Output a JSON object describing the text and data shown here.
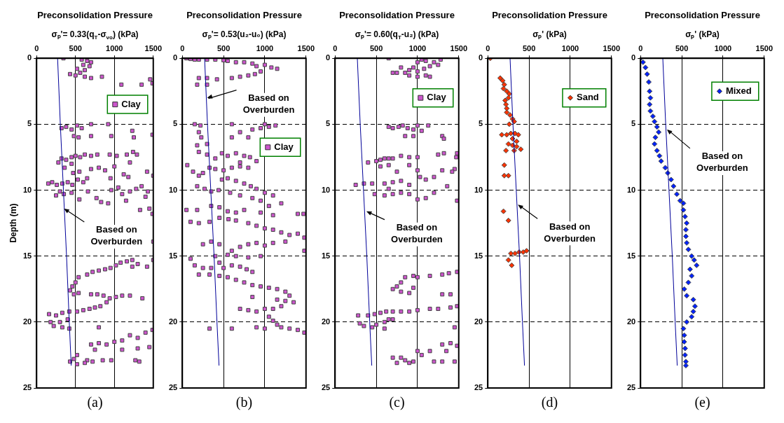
{
  "chart_data": [
    {
      "type": "scatter",
      "title": "Preconsolidation Pressure",
      "xlabel": "σₚ'= 0.33(q$_{T}$-σ$_{vo}$) (kPa)",
      "ylabel": "Depth (m)",
      "xlim": [
        0,
        1500
      ],
      "xticks": [
        0,
        500,
        1000,
        1500
      ],
      "ylim": [
        25,
        0
      ],
      "yticks": [
        0,
        5,
        10,
        15,
        20,
        25
      ],
      "grid": true,
      "legend": "top right",
      "series": [
        {
          "type": "line",
          "color": "#000099",
          "marker": "none",
          "x": [
            270,
            305,
            345,
            385,
            420,
            445
          ],
          "values": [
            0,
            5,
            10,
            15,
            20,
            23.3
          ]
        },
        {
          "name": "Clay",
          "color": "#cc55cc",
          "marker": "square",
          "x": [
            345,
            580,
            650,
            700,
            600,
            680,
            520,
            620,
            560,
            430,
            500,
            620,
            700,
            840,
            1090,
            1350,
            1460,
            1490,
            320,
            380,
            450,
            520,
            580,
            700,
            920,
            1230,
            1250,
            960,
            700,
            540,
            480,
            1490,
            280,
            320,
            380,
            450,
            500,
            560,
            620,
            700,
            780,
            940,
            1030,
            1160,
            1240,
            1290,
            1200,
            1120,
            1000,
            880,
            800,
            700,
            550,
            470,
            360,
            450,
            150,
            200,
            260,
            330,
            400,
            460,
            530,
            600,
            650,
            300,
            250,
            350,
            450,
            550,
            660,
            770,
            830,
            920,
            960,
            1050,
            1100,
            1200,
            1280,
            1350,
            1430,
            1400,
            1150,
            1330,
            1450,
            1490,
            950,
            1180,
            1420,
            1500,
            1500,
            650,
            720,
            800,
            880,
            950,
            1020,
            1080,
            1160,
            1230,
            1300,
            1420,
            1500,
            1230,
            540,
            500,
            460,
            430,
            480,
            540,
            700,
            780,
            860,
            940,
            1020,
            1100,
            1200,
            1360,
            900,
            820,
            750,
            680,
            600,
            520,
            160,
            250,
            330,
            420,
            180,
            220,
            300,
            400,
            330,
            420,
            800,
            700,
            800,
            900,
            1000,
            1100,
            1200,
            1300,
            1400,
            1490,
            1450,
            1300,
            1100,
            750,
            520,
            480,
            520,
            430,
            650,
            720,
            850,
            960,
            1270,
            1320,
            620
          ],
          "values": [
            0,
            0.1,
            0.2,
            0.3,
            0.5,
            0.6,
            0.8,
            0.9,
            1.1,
            1.2,
            1.3,
            1.4,
            1.5,
            1.4,
            2.0,
            2.0,
            1.6,
            1.9,
            5.3,
            5.2,
            5.4,
            5.1,
            5.3,
            5.0,
            5.0,
            5.5,
            6.0,
            5.9,
            5.9,
            6.0,
            5.9,
            5.8,
            7.9,
            7.6,
            7.7,
            7.5,
            7.4,
            7.5,
            7.3,
            7.4,
            7.3,
            7.3,
            7.4,
            7.3,
            7.1,
            7.3,
            7.9,
            8.8,
            8.2,
            8.5,
            8.3,
            8.4,
            8.6,
            8.7,
            8.3,
            8.0,
            9.5,
            9.4,
            9.6,
            9.5,
            9.4,
            9.6,
            9.2,
            9.4,
            9.1,
            10.1,
            10.4,
            10.3,
            10.2,
            10.7,
            10.1,
            10.6,
            10.9,
            11.0,
            10.0,
            9.8,
            10.3,
            10.1,
            9.9,
            9.7,
            10.1,
            10.5,
            10.8,
            11.5,
            11.4,
            11.8,
            9.1,
            9.0,
            8.6,
            8.9,
            13.9,
            16.4,
            16.2,
            16.1,
            16.0,
            15.9,
            15.7,
            15.5,
            15.4,
            15.3,
            15.6,
            15.8,
            15.3,
            15.8,
            16.6,
            17.0,
            17.3,
            17.6,
            17.9,
            17.8,
            17.9,
            17.9,
            18.0,
            18.2,
            18.1,
            18.0,
            18.0,
            18.2,
            18.5,
            18.8,
            18.9,
            19.0,
            19.1,
            19.2,
            19.4,
            19.5,
            19.3,
            19.2,
            20.0,
            20.3,
            20.0,
            19.8,
            20.4,
            20.5,
            20.4,
            21.7,
            21.6,
            21.7,
            21.5,
            21.4,
            21.0,
            21.2,
            20.8,
            20.6,
            21.9,
            22.0,
            22.1,
            22.1,
            22.5,
            22.8,
            23.2,
            23.0,
            22.9,
            23.0,
            22.9,
            22.9,
            22.9,
            23.0,
            23.1
          ]
        }
      ],
      "annotations": [
        {
          "text": "Based on Overburden",
          "x": 352,
          "y": 11.4
        },
        "(a)"
      ]
    },
    {
      "type": "scatter",
      "title": "Preconsolidation Pressure",
      "xlabel": "σₚ'= 0.53(u₂-u₀) (kPa)",
      "xlim": [
        0,
        1500
      ],
      "xticks": [
        0,
        500,
        1000,
        1500
      ],
      "ylim": [
        25,
        0
      ],
      "yticks": [
        0,
        5,
        10,
        15,
        20,
        25
      ],
      "grid": true,
      "legend": "right",
      "series": [
        {
          "type": "line",
          "color": "#000099",
          "marker": "none",
          "x": [
            270,
            305,
            345,
            385,
            420,
            445
          ],
          "values": [
            0,
            5,
            10,
            15,
            20,
            23.3
          ]
        },
        {
          "name": "Clay",
          "color": "#cc55cc",
          "marker": "square",
          "x": [
            50,
            100,
            150,
            200,
            300,
            400,
            500,
            550,
            650,
            750,
            850,
            900,
            1000,
            1080,
            1150,
            950,
            880,
            800,
            700,
            600,
            420,
            300,
            200,
            180,
            300,
            150,
            220,
            200,
            230,
            300,
            180,
            600,
            850,
            950,
            1050,
            1130,
            1000,
            700,
            800,
            600,
            200,
            300,
            400,
            480,
            550,
            650,
            750,
            820,
            900,
            700,
            60,
            130,
            200,
            250,
            330,
            400,
            500,
            600,
            700,
            800,
            480,
            550,
            650,
            750,
            830,
            900,
            1000,
            1100,
            1200,
            180,
            270,
            350,
            440,
            580,
            700,
            850,
            950,
            1050,
            50,
            180,
            350,
            450,
            550,
            650,
            750,
            950,
            1100,
            1400,
            1470,
            100,
            200,
            330,
            450,
            560,
            650,
            800,
            900,
            1000,
            1100,
            1200,
            1300,
            1400,
            1480,
            1250,
            1100,
            1000,
            900,
            800,
            700,
            600,
            450,
            350,
            250,
            1480,
            400,
            550,
            650,
            800,
            950,
            100,
            150,
            250,
            350,
            450,
            500,
            600,
            700,
            780,
            850,
            200,
            330,
            450,
            550,
            650,
            750,
            850,
            950,
            1050,
            1150,
            1250,
            1300,
            1250,
            1150,
            1350,
            1200,
            1100,
            1000,
            900,
            800,
            700,
            850,
            1050,
            1100,
            1150,
            1200,
            1300,
            1400,
            1480,
            1000,
            900,
            600,
            330
          ],
          "values": [
            0,
            0.05,
            0.1,
            0.1,
            0.1,
            0.1,
            0.15,
            0.2,
            0.3,
            0.3,
            0.4,
            0.6,
            0.5,
            0.7,
            0.8,
            1.0,
            1.2,
            1.3,
            1.4,
            1.5,
            1.6,
            1.5,
            1.5,
            2.0,
            2.0,
            5.0,
            5.1,
            5.6,
            6.0,
            6.5,
            6.6,
            5.0,
            5.4,
            5.3,
            5.2,
            5.1,
            5.0,
            5.6,
            6.0,
            6.0,
            7.1,
            7.3,
            7.6,
            7.2,
            7.4,
            7.2,
            7.4,
            7.5,
            7.8,
            7.9,
            8.1,
            8.6,
            8.9,
            8.7,
            8.3,
            8.4,
            8.5,
            8.3,
            8.2,
            8.3,
            9.2,
            9.1,
            9.3,
            9.5,
            9.7,
            9.9,
            10.2,
            10.4,
            11.0,
            9.7,
            9.9,
            10.1,
            10.0,
            10.2,
            10.4,
            10.6,
            10.8,
            11.2,
            11.5,
            11.5,
            11.2,
            11.3,
            11.6,
            11.7,
            11.5,
            11.7,
            11.9,
            11.8,
            11.8,
            12.4,
            12.5,
            12.4,
            12.1,
            12.2,
            12.3,
            12.5,
            12.7,
            12.9,
            13.0,
            13.2,
            13.4,
            13.3,
            13.6,
            13.9,
            14.0,
            14.2,
            14.0,
            14.1,
            14.3,
            14.6,
            14.1,
            13.9,
            14.1,
            14.6,
            15.0,
            14.9,
            15.0,
            15.1,
            15.0,
            15.2,
            15.7,
            15.9,
            15.9,
            15.5,
            15.9,
            15.7,
            15.8,
            16.0,
            16.2,
            16.4,
            16.4,
            16.5,
            16.6,
            16.8,
            17.0,
            17.2,
            17.3,
            17.4,
            17.5,
            17.7,
            18.0,
            18.4,
            18.3,
            18.5,
            18.8,
            19.0,
            19.0,
            19.2,
            19.1,
            19.0,
            18.1,
            19.6,
            19.9,
            20.2,
            20.4,
            20.5,
            20.6,
            20.8,
            20.5,
            20.4,
            20.5,
            20.5
          ]
        }
      ],
      "annotations": [
        {
          "text": "Based on Overburden",
          "x": 300,
          "y": 3.0
        },
        "(b)"
      ]
    },
    {
      "type": "scatter",
      "title": "Preconsolidation Pressure",
      "xlabel": "σₚ'= 0.60(q$_{T}$-u₂) (kPa)",
      "xlim": [
        0,
        1500
      ],
      "xticks": [
        0,
        500,
        1000,
        1500
      ],
      "ylim": [
        25,
        0
      ],
      "yticks": [
        0,
        5,
        10,
        15,
        20,
        25
      ],
      "grid": true,
      "legend": "top right",
      "series": [
        {
          "type": "line",
          "color": "#000099",
          "marker": "none",
          "x": [
            270,
            305,
            345,
            385,
            420,
            445
          ],
          "values": [
            0,
            5,
            10,
            15,
            20,
            23.3
          ]
        },
        {
          "name": "Clay",
          "color": "#cc55cc",
          "marker": "square",
          "x": [
            650,
            1000,
            1050,
            1100,
            1200,
            1280,
            1250,
            1150,
            1080,
            1000,
            950,
            900,
            800,
            850,
            900,
            1000,
            1100,
            1150,
            700,
            750,
            650,
            700,
            770,
            820,
            880,
            950,
            1000,
            1050,
            1130,
            850,
            950,
            1300,
            1320,
            400,
            500,
            550,
            600,
            650,
            700,
            800,
            900,
            1000,
            1250,
            1320,
            1480,
            1470,
            550,
            650,
            750,
            900,
            1000,
            1030,
            1100,
            1200,
            1300,
            1450,
            1420,
            1360,
            250,
            350,
            450,
            600,
            700,
            800,
            900,
            650,
            480,
            600,
            700,
            800,
            900,
            1000,
            1100,
            1200,
            1480,
            850,
            950,
            1000,
            1150,
            1300,
            1380,
            1480,
            800,
            750,
            700,
            800,
            900,
            950,
            1300,
            1400,
            280,
            400,
            480,
            550,
            620,
            700,
            800,
            900,
            1000,
            1150,
            1250,
            1400,
            1480,
            300,
            350,
            450,
            500,
            600,
            650,
            700,
            600,
            1450,
            1300,
            1400,
            1480,
            1350,
            1150,
            1000,
            1050,
            700,
            800,
            850,
            900,
            950,
            750,
            1200,
            1300,
            1450
          ],
          "values": [
            0,
            0.3,
            0.1,
            0.2,
            0.3,
            0.1,
            0.5,
            0.6,
            0.8,
            1.0,
            0.7,
            0.9,
            0.7,
            1.1,
            1.3,
            1.4,
            1.3,
            1.4,
            1.1,
            1.1,
            5.2,
            5.3,
            5.2,
            5.1,
            5.3,
            5.4,
            5.1,
            5.5,
            5.1,
            5.9,
            5.9,
            5.9,
            6.1,
            7.9,
            7.8,
            7.7,
            7.6,
            7.6,
            7.6,
            7.4,
            7.5,
            7.5,
            7.3,
            7.2,
            7.2,
            7.5,
            8.2,
            8.1,
            8.6,
            8.1,
            8.5,
            9.0,
            9.2,
            9.0,
            8.5,
            8.4,
            8.6,
            9.7,
            9.6,
            9.5,
            9.5,
            9.5,
            9.4,
            9.3,
            9.6,
            9.9,
            10.3,
            10.4,
            10.3,
            10.2,
            10.3,
            10.7,
            10.6,
            10.2,
            10.8,
            16.6,
            16.5,
            16.6,
            16.5,
            16.4,
            16.3,
            16.2,
            17.0,
            17.3,
            17.5,
            17.7,
            17.8,
            17.4,
            17.9,
            17.9,
            19.5,
            19.5,
            19.4,
            19.3,
            19.2,
            19.2,
            19.2,
            19.2,
            19.1,
            19.0,
            19.0,
            18.9,
            18.8,
            20.1,
            20.3,
            20.4,
            20.2,
            20.0,
            19.8,
            19.8,
            20.5,
            20.4,
            21.7,
            21.6,
            21.8,
            22.2,
            22.2,
            22.2,
            22.5,
            22.7,
            22.7,
            22.9,
            23.1,
            23.0,
            23.1,
            23.0,
            23.0,
            23.0
          ]
        }
      ],
      "annotations": [
        {
          "text": "Based on Overburden",
          "x": 380,
          "y": 11.6
        },
        "(c)"
      ]
    },
    {
      "type": "scatter",
      "title": "Preconsolidation Pressure",
      "xlabel": "σₚ' (kPa)",
      "xlim": [
        0,
        1500
      ],
      "xticks": [
        0,
        500,
        1000,
        1500
      ],
      "ylim": [
        25,
        0
      ],
      "yticks": [
        0,
        5,
        10,
        15,
        20,
        25
      ],
      "grid": true,
      "legend": "top right",
      "series": [
        {
          "type": "line",
          "color": "#000099",
          "marker": "none",
          "x": [
            270,
            305,
            345,
            385,
            420,
            445
          ],
          "values": [
            0,
            5,
            10,
            15,
            20,
            23.3
          ]
        },
        {
          "name": "Sand",
          "color": "#ff3300",
          "marker": "diamond",
          "x": [
            30,
            150,
            180,
            200,
            190,
            230,
            260,
            250,
            210,
            220,
            230,
            230,
            270,
            300,
            320,
            260,
            170,
            230,
            280,
            330,
            370,
            300,
            350,
            250,
            300,
            350,
            400,
            220,
            320,
            200,
            200,
            250,
            190,
            250,
            280,
            330,
            380,
            430,
            470,
            250,
            290
          ],
          "values": [
            0,
            1.5,
            1.7,
            2.0,
            2.3,
            2.5,
            2.7,
            3.0,
            3.2,
            3.5,
            3.8,
            4.1,
            4.3,
            4.6,
            4.8,
            5.0,
            5.8,
            5.8,
            5.7,
            5.7,
            5.8,
            6.1,
            6.3,
            6.5,
            6.6,
            6.7,
            6.9,
            7.0,
            7.0,
            8.1,
            8.9,
            8.9,
            11.6,
            12.3,
            14.8,
            14.8,
            14.7,
            14.7,
            14.6,
            15.3,
            15.7
          ]
        }
      ],
      "annotations": [
        {
          "text": "Based on Overburden",
          "x": 365,
          "y": 11.1
        },
        "(d)"
      ]
    },
    {
      "type": "scatter",
      "title": "Preconsolidation Pressure",
      "xlabel": "σₚ' (kPa)",
      "xlim": [
        0,
        1500
      ],
      "xticks": [
        0,
        500,
        1000,
        1500
      ],
      "ylim": [
        25,
        0
      ],
      "yticks": [
        0,
        5,
        10,
        15,
        20,
        25
      ],
      "grid": true,
      "legend": "top right",
      "series": [
        {
          "type": "line",
          "color": "#000099",
          "marker": "none",
          "x": [
            270,
            305,
            345,
            385,
            420,
            445
          ],
          "values": [
            0,
            5,
            10,
            15,
            20,
            23.3
          ]
        },
        {
          "name": "Mixed",
          "color": "#0022ff",
          "marker": "diamond",
          "x": [
            0,
            30,
            60,
            80,
            100,
            110,
            120,
            110,
            120,
            150,
            170,
            200,
            220,
            180,
            170,
            200,
            230,
            250,
            300,
            330,
            370,
            400,
            440,
            480,
            520,
            520,
            540,
            560,
            550,
            550,
            560,
            580,
            620,
            650,
            680,
            600,
            620,
            580,
            530,
            560,
            640,
            660,
            640,
            620,
            560,
            520,
            530,
            530,
            540,
            540,
            550,
            550
          ],
          "values": [
            0,
            0.3,
            0.7,
            1.2,
            1.8,
            2.5,
            3.0,
            3.5,
            4.0,
            4.4,
            4.8,
            5.2,
            5.6,
            6.0,
            6.5,
            7.0,
            7.4,
            7.8,
            8.3,
            8.7,
            9.2,
            9.7,
            10.3,
            10.8,
            11.0,
            11.5,
            12.0,
            12.5,
            13.0,
            13.5,
            14.0,
            14.5,
            15.0,
            15.3,
            15.7,
            16.0,
            16.5,
            17.0,
            17.5,
            18.0,
            18.3,
            18.8,
            19.2,
            19.6,
            20.0,
            20.5,
            21.0,
            21.5,
            22.0,
            22.5,
            23.0,
            23.3
          ]
        }
      ],
      "annotations": [
        {
          "text": "Based on Overburden",
          "x": 320,
          "y": 5.4
        },
        "(e)"
      ]
    }
  ]
}
